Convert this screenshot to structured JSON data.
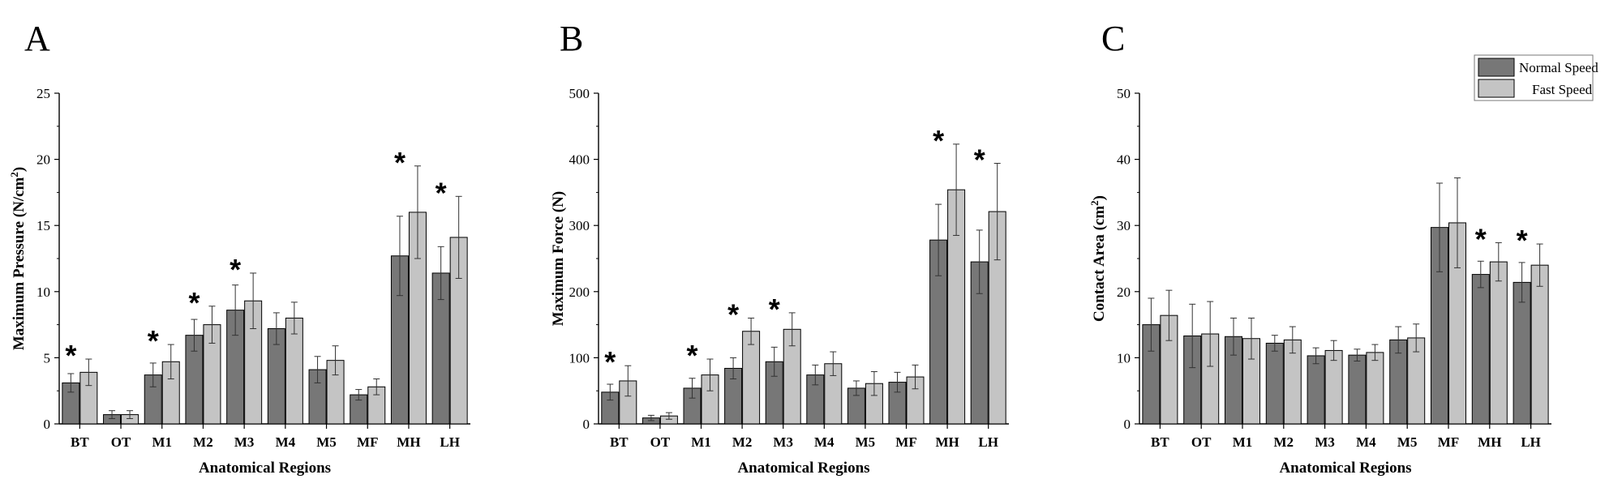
{
  "colors": {
    "normal": "#777777",
    "fast": "#c4c4c4",
    "axis": "#000000"
  },
  "legend": {
    "normal_label": "Normal Speed",
    "fast_label": "Fast Speed"
  },
  "chart_data": [
    {
      "panel": "A",
      "type": "bar",
      "xlabel": "Anatomical Regions",
      "ylabel": "Maximum Pressure (N/cm",
      "ylabel_sup": "2",
      "ylabel_end": ")",
      "ylim": [
        0,
        25
      ],
      "yticks": [
        0,
        5,
        10,
        15,
        20,
        25
      ],
      "categories": [
        "BT",
        "OT",
        "M1",
        "M2",
        "M3",
        "M4",
        "M5",
        "MF",
        "MH",
        "LH"
      ],
      "series": [
        {
          "name": "Normal Speed",
          "values": [
            3.1,
            0.7,
            3.7,
            6.7,
            8.6,
            7.2,
            4.1,
            2.2,
            12.7,
            11.4
          ],
          "errors": [
            0.7,
            0.3,
            0.9,
            1.2,
            1.9,
            1.2,
            1.0,
            0.4,
            3.0,
            2.0
          ]
        },
        {
          "name": "Fast Speed",
          "values": [
            3.9,
            0.7,
            4.7,
            7.5,
            9.3,
            8.0,
            4.8,
            2.8,
            16.0,
            14.1
          ],
          "errors": [
            1.0,
            0.3,
            1.3,
            1.4,
            2.1,
            1.2,
            1.1,
            0.6,
            3.5,
            3.1
          ]
        }
      ],
      "significant": [
        "BT",
        "M1",
        "M2",
        "M3",
        "MH",
        "LH"
      ],
      "sig_marker": "*"
    },
    {
      "panel": "B",
      "type": "bar",
      "xlabel": "Anatomical Regions",
      "ylabel": "Maximum Force (N)",
      "ylabel_sup": "",
      "ylabel_end": "",
      "ylim": [
        0,
        500
      ],
      "yticks": [
        0,
        100,
        200,
        300,
        400,
        500
      ],
      "categories": [
        "BT",
        "OT",
        "M1",
        "M2",
        "M3",
        "M4",
        "M5",
        "MF",
        "MH",
        "LH"
      ],
      "series": [
        {
          "name": "Normal Speed",
          "values": [
            48,
            9,
            54,
            84,
            94,
            74,
            54,
            63,
            278,
            245
          ],
          "errors": [
            12,
            4,
            15,
            16,
            22,
            15,
            11,
            15,
            54,
            48
          ]
        },
        {
          "name": "Fast Speed",
          "values": [
            65,
            12,
            74,
            140,
            143,
            91,
            61,
            71,
            354,
            321
          ],
          "errors": [
            23,
            5,
            24,
            20,
            25,
            18,
            18,
            18,
            69,
            73
          ]
        }
      ],
      "significant": [
        "BT",
        "M1",
        "M2",
        "M3",
        "MH",
        "LH"
      ],
      "sig_marker": "*"
    },
    {
      "panel": "C",
      "type": "bar",
      "xlabel": "Anatomical Regions",
      "ylabel": "Contact Area (cm",
      "ylabel_sup": "2",
      "ylabel_end": ")",
      "ylim": [
        0,
        50
      ],
      "yticks": [
        0,
        10,
        20,
        30,
        40,
        50
      ],
      "categories": [
        "BT",
        "OT",
        "M1",
        "M2",
        "M3",
        "M4",
        "M5",
        "MF",
        "MH",
        "LH"
      ],
      "series": [
        {
          "name": "Normal Speed",
          "values": [
            15.0,
            13.3,
            13.2,
            12.2,
            10.3,
            10.4,
            12.7,
            29.7,
            22.6,
            21.4
          ],
          "errors": [
            4.0,
            4.8,
            2.8,
            1.2,
            1.2,
            0.9,
            2.0,
            6.7,
            2.0,
            3.0
          ]
        },
        {
          "name": "Fast Speed",
          "values": [
            16.4,
            13.6,
            12.9,
            12.7,
            11.1,
            10.8,
            13.0,
            30.4,
            24.5,
            24.0
          ],
          "errors": [
            3.8,
            4.9,
            3.1,
            2.0,
            1.5,
            1.2,
            2.1,
            6.8,
            2.9,
            3.2
          ]
        }
      ],
      "significant": [
        "MH",
        "LH"
      ],
      "sig_marker": "*"
    }
  ]
}
